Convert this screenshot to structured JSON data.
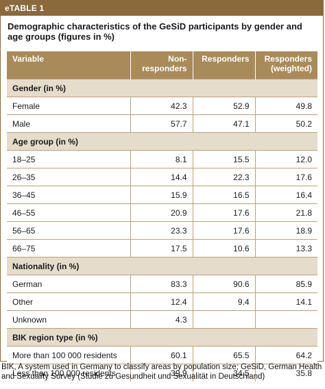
{
  "label": "eTABLE 1",
  "caption": "Demographic characteristics of the GeSiD participants by gender and age groups (figures in %)",
  "headers": {
    "variable": "Variable",
    "nonresponders": "Non-\nresponders",
    "responders": "Responders",
    "weighted": "Responders\n(weighted)"
  },
  "sections": [
    {
      "title": "Gender (in %)",
      "rows": [
        {
          "label": "Female",
          "values": [
            "42.3",
            "52.9",
            "49.8"
          ]
        },
        {
          "label": "Male",
          "values": [
            "57.7",
            "47.1",
            "50.2"
          ]
        }
      ]
    },
    {
      "title": "Age group (in %)",
      "rows": [
        {
          "label": "18–25",
          "values": [
            "8.1",
            "15.5",
            "12.0"
          ]
        },
        {
          "label": "26–35",
          "values": [
            "14.4",
            "22.3",
            "17.6"
          ]
        },
        {
          "label": "36–45",
          "values": [
            "15.9",
            "16.5",
            "16.4"
          ]
        },
        {
          "label": "46–55",
          "values": [
            "20.9",
            "17.6",
            "21.8"
          ]
        },
        {
          "label": "56–65",
          "values": [
            "23.3",
            "17.6",
            "18.9"
          ]
        },
        {
          "label": "66–75",
          "values": [
            "17.5",
            "10.6",
            "13.3"
          ]
        }
      ]
    },
    {
      "title": "Nationality (in %)",
      "rows": [
        {
          "label": "German",
          "values": [
            "83.3",
            "90.6",
            "85.9"
          ]
        },
        {
          "label": "Other",
          "values": [
            "12.4",
            "9.4",
            "14.1"
          ]
        },
        {
          "label": "Unknown",
          "values": [
            "4.3",
            "",
            ""
          ]
        }
      ]
    },
    {
      "title": "BIK region type (in %)",
      "rows": [
        {
          "label": "More than 100 000 residents",
          "values": [
            "60.1",
            "65.5",
            "64.2"
          ]
        },
        {
          "label": "Less than 100 000 residents",
          "values": [
            "39.9",
            "34.5",
            "35.8"
          ]
        }
      ]
    }
  ],
  "footnote": "BIK, A system used in Germany to classify areas by population size; GeSiD, German Health and Sexuality Survey (Studie zu Gesundheit und Sexualität in Deutschland)",
  "colors": {
    "label_bar": "#8a6a3c",
    "header": "#a98a5a",
    "section": "#e6dccc",
    "rule": "#b8a07a"
  }
}
